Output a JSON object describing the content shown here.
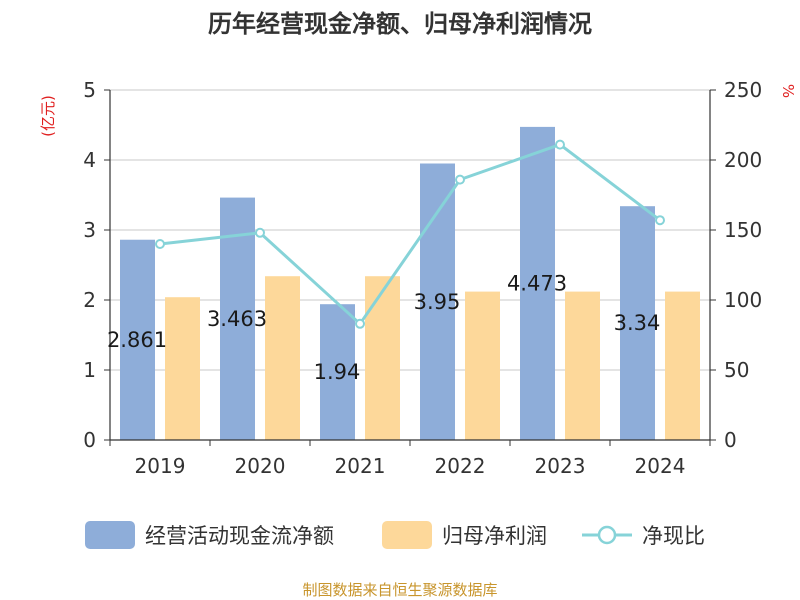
{
  "chart_data": {
    "type": "bar",
    "title": "历年经营现金净额、归母净利润情况",
    "categories": [
      "2019",
      "2020",
      "2021",
      "2022",
      "2023",
      "2024"
    ],
    "series": [
      {
        "name": "经营活动现金流净额",
        "type": "bar",
        "axis": "left",
        "color": "#8eadd9",
        "values": [
          2.861,
          3.463,
          1.94,
          3.95,
          4.473,
          3.34
        ],
        "data_labels": [
          "2.861",
          "3.463",
          "1.94",
          "3.95",
          "4.473",
          "3.34"
        ]
      },
      {
        "name": "归母净利润",
        "type": "bar",
        "axis": "left",
        "color": "#fdd89a",
        "values": [
          2.04,
          2.34,
          2.34,
          2.12,
          2.12,
          2.12
        ]
      },
      {
        "name": "净现比",
        "type": "line",
        "axis": "right",
        "color": "#86d3d8",
        "values": [
          140,
          148,
          83,
          186,
          211,
          157
        ]
      }
    ],
    "y_left": {
      "unit": "(亿元)",
      "ylim": [
        0,
        5
      ],
      "ticks": [
        "0",
        "1",
        "2",
        "3",
        "4",
        "5"
      ]
    },
    "y_right": {
      "unit": "%",
      "ylim": [
        0,
        250
      ],
      "ticks": [
        "0",
        "50",
        "100",
        "150",
        "200",
        "250"
      ]
    },
    "grid": true,
    "legend_position": "bottom"
  },
  "source": "制图数据来自恒生聚源数据库"
}
